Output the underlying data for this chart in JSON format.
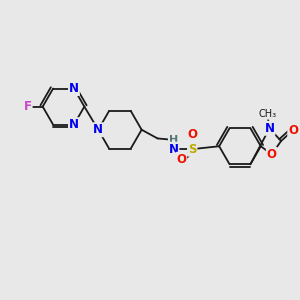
{
  "background_color": "#e8e8e8",
  "bond_color": "#1a1a1a",
  "figsize": [
    3.0,
    3.0
  ],
  "dpi": 100,
  "atoms": {
    "F": {
      "color": "#cc44cc",
      "fontsize": 8.5
    },
    "N": {
      "color": "#0000ee",
      "fontsize": 8.5
    },
    "O": {
      "color": "#ee1100",
      "fontsize": 8.5
    },
    "S": {
      "color": "#bbaa00",
      "fontsize": 8.5
    },
    "H": {
      "color": "#557777",
      "fontsize": 8.5
    },
    "me": {
      "color": "#1a1a1a",
      "fontsize": 7.5
    }
  }
}
